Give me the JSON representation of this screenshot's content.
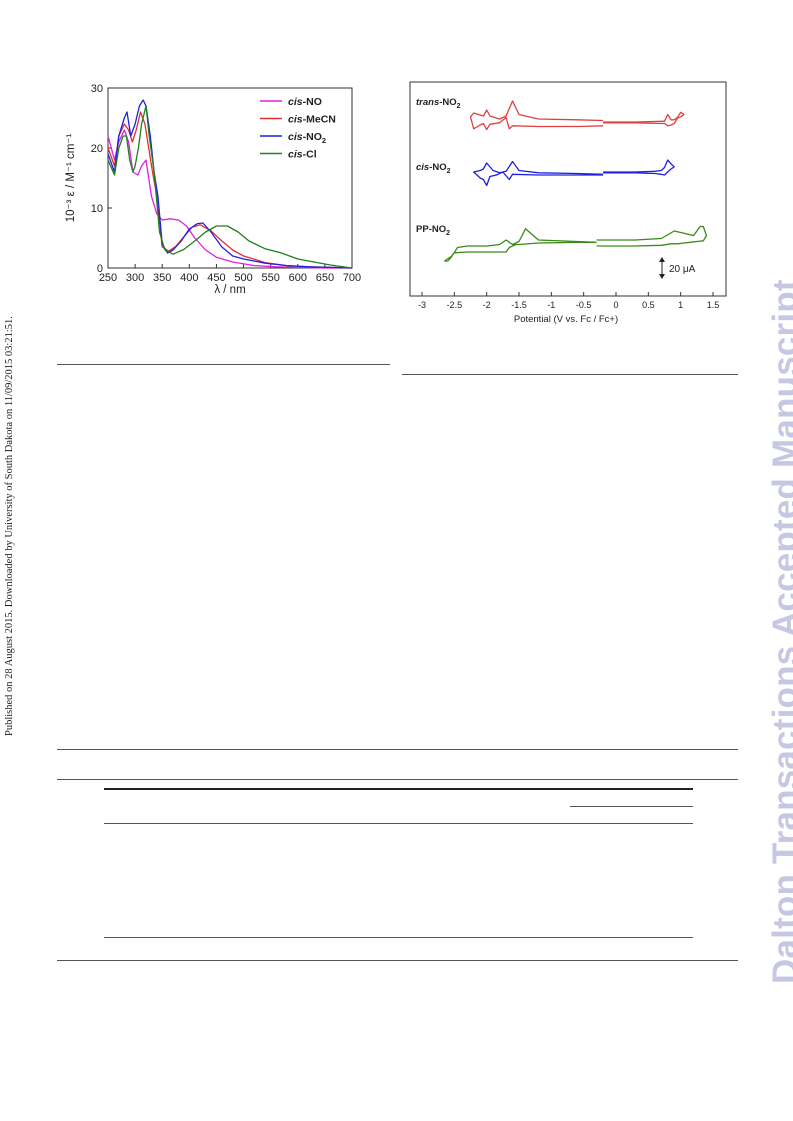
{
  "meta": {
    "published_line": "Published on 28 August 2015. Downloaded by University of South Dakota on 11/09/2015 03:21:51.",
    "watermark": "Dalton Transactions Accepted Manuscript"
  },
  "colors": {
    "cis_NO": "#e020e0",
    "cis_MeCN": "#e03030",
    "cis_NO2": "#2020e0",
    "cis_Cl": "#208020",
    "trans_NO2": "#e04040",
    "PP_NO2": "#3a8a1a",
    "watermark": "#c6c7e2"
  },
  "chart_data": [
    {
      "type": "line",
      "title": "",
      "xlabel": "λ / nm",
      "ylabel": "10⁻³ ε / M⁻¹ cm⁻¹",
      "xlim": [
        250,
        700
      ],
      "ylim": [
        0,
        30
      ],
      "x_ticks": [
        "250",
        "300",
        "350",
        "400",
        "450",
        "500",
        "550",
        "600",
        "650",
        "700"
      ],
      "y_ticks": [
        "0",
        "10",
        "20",
        "30"
      ],
      "legend_position": "top-right",
      "series": [
        {
          "name_prefix": "cis",
          "name_suffix": "-NO",
          "sub": "",
          "color_key": "cis_NO",
          "x": [
            250,
            262,
            270,
            280,
            288,
            296,
            305,
            312,
            320,
            330,
            340,
            350,
            365,
            380,
            395,
            410,
            430,
            450,
            480,
            520,
            560,
            600,
            650,
            700
          ],
          "y": [
            22,
            18,
            21,
            23,
            21,
            16,
            15.5,
            17,
            18,
            12,
            9,
            8,
            8.2,
            8,
            7,
            5,
            3,
            1.8,
            1,
            0.4,
            0.2,
            0.1,
            0,
            0
          ]
        },
        {
          "name_prefix": "cis",
          "name_suffix": "-MeCN",
          "sub": "",
          "color_key": "cis_MeCN",
          "x": [
            250,
            262,
            270,
            280,
            288,
            295,
            302,
            310,
            318,
            325,
            332,
            340,
            350,
            362,
            375,
            390,
            405,
            420,
            440,
            460,
            480,
            500,
            540,
            580,
            620,
            700
          ],
          "y": [
            20,
            17,
            22,
            24,
            23,
            21,
            23,
            26,
            24,
            20,
            16,
            12,
            3.5,
            2.8,
            3.6,
            5.2,
            6.8,
            7.2,
            6.2,
            4.5,
            3,
            2,
            0.9,
            0.4,
            0.2,
            0
          ]
        },
        {
          "name_prefix": "cis",
          "name_suffix": "-NO",
          "sub": "2",
          "color_key": "cis_NO2",
          "x": [
            250,
            262,
            270,
            280,
            285,
            292,
            300,
            308,
            315,
            320,
            328,
            335,
            342,
            350,
            360,
            370,
            385,
            400,
            415,
            425,
            440,
            460,
            480,
            500,
            540,
            580,
            620,
            700
          ],
          "y": [
            19,
            16,
            22,
            25,
            26,
            22,
            24,
            27,
            28,
            27,
            22,
            16,
            12,
            4,
            2.5,
            3,
            4.5,
            6.5,
            7.4,
            7.5,
            6,
            3.5,
            2,
            1.5,
            0.8,
            0.4,
            0.2,
            0
          ]
        },
        {
          "name_prefix": "cis",
          "name_suffix": "-Cl",
          "sub": "",
          "color_key": "cis_Cl",
          "x": [
            250,
            262,
            270,
            278,
            284,
            290,
            296,
            300,
            306,
            312,
            320,
            326,
            335,
            345,
            355,
            370,
            390,
            410,
            430,
            450,
            470,
            490,
            510,
            540,
            570,
            600,
            630,
            660,
            700
          ],
          "y": [
            18,
            15.5,
            20,
            22,
            22,
            18,
            16,
            17,
            20,
            24,
            27,
            22,
            16,
            6,
            3,
            2.3,
            3.1,
            4.5,
            6,
            7,
            7,
            6,
            4.5,
            3.2,
            2.5,
            1.5,
            1,
            0.5,
            0
          ]
        }
      ]
    },
    {
      "type": "line",
      "title": "",
      "xlabel": "Potential (V vs. Fc / Fc+)",
      "ylabel": "",
      "xlim": [
        -3,
        1.5
      ],
      "x_ticks": [
        "-3",
        "-2.5",
        "-2",
        "-1.5",
        "-1",
        "-0.5",
        "0",
        "0.5",
        "1",
        "1.5"
      ],
      "scale_bar_label": "20 μA",
      "legend_position": "inline labels at left of each trace",
      "series": [
        {
          "label_prefix": "trans",
          "label_suffix": "-NO",
          "sub": "2",
          "color_key": "trans_NO2",
          "segments": [
            {
              "x": [
                -0.2,
                -0.6,
                -1.2,
                -1.6,
                -1.65,
                -1.7,
                -1.8,
                -1.95,
                -2.0,
                -2.05,
                -2.1,
                -2.2,
                -2.25,
                -2.2,
                -2.05,
                -2.0,
                -1.95,
                -1.8,
                -1.7,
                -1.6,
                -1.5,
                -1.2,
                -0.6,
                -0.2
              ],
              "y": [
                -0.5,
                -0.6,
                -0.6,
                -0.5,
                -0.9,
                0.6,
                -0.1,
                -0.3,
                -1.0,
                -0.2,
                -0.4,
                -0.9,
                0.7,
                1.2,
                0.8,
                1.6,
                0.8,
                0.4,
                0.8,
                2.8,
                1.0,
                0.4,
                0.3,
                0.2
              ]
            },
            {
              "x": [
                -0.2,
                0.3,
                0.7,
                0.75,
                0.8,
                0.85,
                0.9,
                0.95,
                1.0,
                1.05,
                1.0,
                0.95,
                0.9,
                0.85,
                0.8,
                0.75,
                0.7,
                0.3,
                -0.2
              ],
              "y": [
                0.0,
                0.0,
                0.1,
                0.1,
                1.0,
                0.3,
                0.3,
                0.6,
                1.3,
                1.0,
                0.7,
                0.5,
                -0.2,
                -0.4,
                -0.5,
                -0.2,
                -0.2,
                -0.1,
                -0.1
              ]
            }
          ]
        },
        {
          "label_prefix": "cis",
          "label_suffix": "-NO",
          "sub": "2",
          "color_key": "cis_NO2",
          "segments": [
            {
              "x": [
                -0.2,
                -0.6,
                -1.2,
                -1.6,
                -1.65,
                -1.75,
                -1.85,
                -1.95,
                -2.0,
                -2.05,
                -2.1,
                -2.15,
                -2.2,
                -2.1,
                -2.05,
                -2.0,
                -1.9,
                -1.8,
                -1.7,
                -1.6,
                -1.5,
                -1.2,
                -0.6,
                -0.2
              ],
              "y": [
                0.0,
                0.0,
                0.0,
                0.1,
                -0.6,
                0.4,
                0.0,
                -0.2,
                -1.4,
                -0.6,
                -0.4,
                0.0,
                0.4,
                0.6,
                0.8,
                1.6,
                0.6,
                0.3,
                0.5,
                1.8,
                0.6,
                0.3,
                0.2,
                0.1
              ]
            },
            {
              "x": [
                -0.2,
                0.3,
                0.6,
                0.7,
                0.75,
                0.8,
                0.85,
                0.9,
                0.85,
                0.8,
                0.75,
                0.7,
                0.6,
                0.3,
                -0.2
              ],
              "y": [
                0.4,
                0.4,
                0.5,
                0.6,
                1.0,
                2.0,
                1.5,
                1.1,
                0.8,
                0.4,
                0.0,
                0.1,
                0.2,
                0.3,
                0.3
              ]
            }
          ]
        },
        {
          "label_prefix": "PP",
          "label_suffix": "-NO",
          "sub": "2",
          "color_key": "PP_NO2",
          "segments": [
            {
              "x": [
                -0.3,
                -0.6,
                -1.2,
                -1.5,
                -1.55,
                -1.6,
                -1.65,
                -1.7,
                -1.8,
                -2.0,
                -2.3,
                -2.5,
                -2.55,
                -2.65,
                -2.6,
                -2.55,
                -2.45,
                -2.3,
                -2.0,
                -1.8,
                -1.7,
                -1.6,
                -1.5,
                -1.4,
                -1.2,
                -0.6,
                -0.3
              ],
              "y": [
                0.5,
                0.5,
                0.4,
                0.2,
                0.2,
                0.0,
                -0.2,
                -0.8,
                -0.8,
                -0.8,
                -0.8,
                -0.9,
                -1.4,
                -2.0,
                -2.0,
                -1.5,
                -0.2,
                0.0,
                0.0,
                0.2,
                0.8,
                0.2,
                0.6,
                2.3,
                0.8,
                0.6,
                0.5
              ]
            },
            {
              "x": [
                -0.3,
                0.3,
                0.7,
                0.85,
                0.95,
                1.05,
                1.15,
                1.25,
                1.35,
                1.4,
                1.35,
                1.3,
                1.2,
                1.1,
                1.0,
                0.9,
                0.7,
                0.3,
                -0.3
              ],
              "y": [
                0.0,
                0.0,
                0.1,
                0.3,
                0.3,
                0.4,
                0.5,
                0.6,
                0.7,
                1.4,
                2.6,
                2.6,
                1.4,
                1.6,
                1.8,
                2.0,
                1.0,
                0.8,
                0.8
              ]
            }
          ]
        }
      ]
    }
  ]
}
